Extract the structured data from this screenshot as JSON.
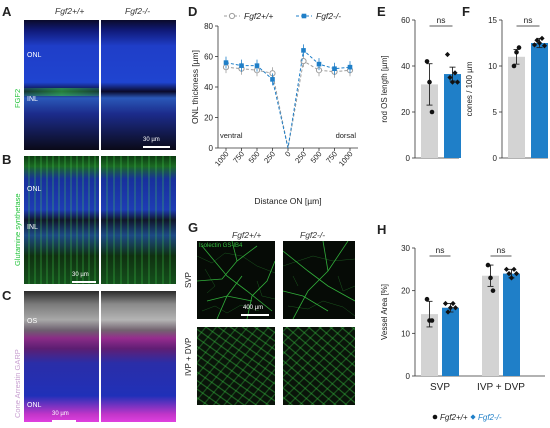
{
  "panel_letters": [
    "A",
    "B",
    "C",
    "D",
    "E",
    "F",
    "G",
    "H"
  ],
  "genotypes": {
    "wt": "Fgf2+/+",
    "ko": "Fgf2-/-"
  },
  "panel_a": {
    "stain": "FGF2",
    "layers": [
      "ONL",
      "INL"
    ],
    "scale_bar": "30 µm"
  },
  "panel_b": {
    "stain": "Glutamine synthetase",
    "layers": [
      "ONL",
      "INL"
    ],
    "scale_bar": "30 µm"
  },
  "panel_c": {
    "stain": "Cone Arrestin GARP",
    "layers": [
      "OS",
      "ONL"
    ],
    "scale_bar": "30 µm"
  },
  "panel_g": {
    "stain": "Isolectin GS-IB4",
    "rows": [
      "SVP",
      "IVP + DVP"
    ],
    "scale_bar": "400 µm"
  },
  "legend_bottom": {
    "wt": "Fgf2+/+",
    "ko": "Fgf2-/-"
  },
  "colors": {
    "wt": "#9e9e9e",
    "ko": "#1f7fc8",
    "bar_wt": "#d3d3d3",
    "bar_ko": "#1f7fc8"
  },
  "chart_data": [
    {
      "panel": "D",
      "type": "line",
      "ylabel": "ONL thickness [µm]",
      "xlabel": "Distance ON [µm]",
      "ylim": [
        0,
        80
      ],
      "yticks": [
        0,
        20,
        40,
        60,
        80
      ],
      "x_ticklabels": [
        "1000",
        "750",
        "500",
        "250",
        "0",
        "250",
        "500",
        "750",
        "1000"
      ],
      "region_labels": [
        "ventral",
        "dorsal"
      ],
      "series": [
        {
          "name": "Fgf2+/+",
          "values": [
            53,
            52,
            51,
            49,
            0,
            57,
            51,
            50,
            51
          ]
        },
        {
          "name": "Fgf2-/-",
          "values": [
            56,
            54,
            54,
            45,
            0,
            64,
            55,
            52,
            53
          ]
        }
      ]
    },
    {
      "panel": "E",
      "type": "bar",
      "ylabel": "rod OS length [µm]",
      "ylim": [
        0,
        60
      ],
      "yticks": [
        0,
        20,
        40,
        60
      ],
      "significance": "ns",
      "values": [
        32,
        36.5
      ],
      "errors": [
        9,
        3
      ],
      "points": [
        [
          42,
          33,
          20
        ],
        [
          45,
          35,
          33,
          37,
          33
        ]
      ]
    },
    {
      "panel": "F",
      "type": "bar",
      "ylabel": "cones / 100 µm",
      "ylim": [
        0,
        15
      ],
      "yticks": [
        0,
        5,
        10,
        15
      ],
      "significance": "ns",
      "values": [
        11,
        12.5
      ],
      "errors": [
        0.8,
        0.5
      ],
      "points": [
        [
          10,
          11.5,
          12
        ],
        [
          12.3,
          12.8,
          12.5,
          13,
          12.2
        ]
      ]
    },
    {
      "panel": "H",
      "type": "bar",
      "ylabel": "Vessel Area [%]",
      "ylim": [
        0,
        30
      ],
      "yticks": [
        0,
        10,
        20,
        30
      ],
      "categories": [
        "SVP",
        "IVP + DVP"
      ],
      "significance": [
        "ns",
        "ns"
      ],
      "series": [
        {
          "name": "Fgf2+/+",
          "values": [
            14.5,
            23.5
          ],
          "errors": [
            3,
            2.5
          ],
          "points": [
            [
              18,
              13,
              13
            ],
            [
              26,
              23,
              20
            ]
          ]
        },
        {
          "name": "Fgf2-/-",
          "values": [
            16,
            24
          ],
          "errors": [
            1,
            1
          ],
          "points": [
            [
              17,
              15,
              16,
              17,
              16
            ],
            [
              25,
              24,
              23,
              25,
              24
            ]
          ]
        }
      ]
    }
  ]
}
